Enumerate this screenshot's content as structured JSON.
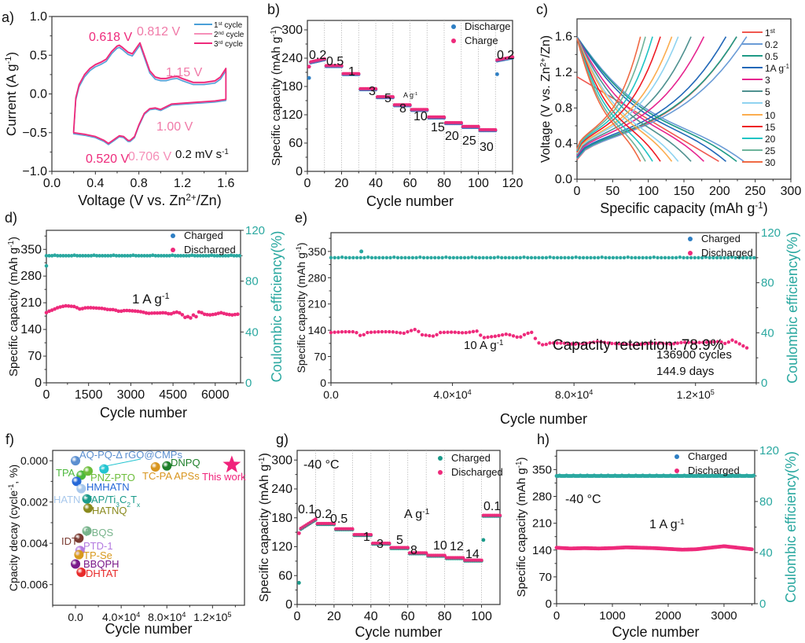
{
  "chart_data": [
    {
      "panel": "a)",
      "type": "line",
      "xlabel": "Voltage (V vs. Zn2+/Zn)",
      "ylabel": "Current (A g-1)",
      "xlim": [
        0.0,
        1.8
      ],
      "ylim": [
        -1.0,
        1.0
      ],
      "xticks": [
        "0.0",
        "0.4",
        "0.8",
        "1.2",
        "1.6"
      ],
      "yticks": [
        "-1.0",
        "-0.5",
        "0.0",
        "0.5",
        "1.0"
      ],
      "legend": [
        {
          "label": "1st cycle",
          "color": "#4a9fd8"
        },
        {
          "label": "2nd cycle",
          "color": "#f58fb8"
        },
        {
          "label": "3rd cycle",
          "color": "#ee2a7b"
        }
      ],
      "legend_position": "top-right",
      "annotations": [
        {
          "text": "0.618 V",
          "color": "#ee2a7b"
        },
        {
          "text": "0.812 V",
          "color": "#f07aa8"
        },
        {
          "text": "1.15 V",
          "color": "#f07aa8"
        },
        {
          "text": "1.00 V",
          "color": "#f07aa8"
        },
        {
          "text": "0.520 V",
          "color": "#ee2a7b"
        },
        {
          "text": "0.706 V",
          "color": "#f58fb8"
        },
        {
          "text": "0.2 mV s-1",
          "color": "#111111"
        }
      ],
      "series": [
        {
          "name": "3rd cycle anodic",
          "x": [
            0.2,
            0.22,
            0.25,
            0.3,
            0.35,
            0.4,
            0.45,
            0.5,
            0.55,
            0.6,
            0.62,
            0.65,
            0.7,
            0.74,
            0.78,
            0.81,
            0.85,
            0.9,
            0.95,
            1.0,
            1.05,
            1.1,
            1.15,
            1.2,
            1.3,
            1.4,
            1.5,
            1.55,
            1.6
          ],
          "y": [
            -0.48,
            -0.05,
            0.12,
            0.25,
            0.33,
            0.38,
            0.41,
            0.45,
            0.55,
            0.62,
            0.63,
            0.6,
            0.54,
            0.52,
            0.6,
            0.66,
            0.5,
            0.3,
            0.22,
            0.2,
            0.2,
            0.22,
            0.23,
            0.2,
            0.15,
            0.15,
            0.17,
            0.22,
            0.33
          ]
        },
        {
          "name": "3rd cycle cathodic",
          "x": [
            1.6,
            1.5,
            1.3,
            1.1,
            1.0,
            0.95,
            0.9,
            0.85,
            0.8,
            0.76,
            0.72,
            0.7,
            0.66,
            0.62,
            0.58,
            0.52,
            0.48,
            0.4,
            0.3,
            0.2
          ],
          "y": [
            -0.07,
            -0.09,
            -0.11,
            -0.13,
            -0.2,
            -0.18,
            -0.19,
            -0.25,
            -0.4,
            -0.55,
            -0.6,
            -0.6,
            -0.55,
            -0.54,
            -0.58,
            -0.64,
            -0.6,
            -0.55,
            -0.52,
            -0.5
          ]
        }
      ]
    },
    {
      "panel": "b)",
      "type": "scatter",
      "xlabel": "Cycle number",
      "ylabel": "Specific capacity (mAh g-1)",
      "xlim": [
        0,
        120
      ],
      "ylim": [
        0,
        320
      ],
      "xticks": [
        "0",
        "20",
        "40",
        "60",
        "80",
        "100",
        "120"
      ],
      "yticks": [
        "0",
        "60",
        "120",
        "180",
        "240",
        "300"
      ],
      "legend": [
        {
          "label": "Discharge",
          "color": "#2e7fc4"
        },
        {
          "label": "Charge",
          "color": "#ee2a7b"
        }
      ],
      "legend_position": "top-right",
      "unit_annotation": "A g-1",
      "rate_labels": [
        "0.2",
        "0.5",
        "1",
        "3",
        "5",
        "8",
        "10",
        "15",
        "20",
        "25",
        "30",
        "0.2"
      ],
      "segment_capacities": [
        238,
        224,
        207,
        175,
        158,
        141,
        131,
        115,
        103,
        95,
        88,
        242
      ],
      "first_cycle_discharge": 198,
      "first_cycle_charge": 222,
      "cycle_111_discharge": 206
    },
    {
      "panel": "c)",
      "type": "line",
      "xlabel": "Specific capacity (mAh g-1)",
      "ylabel": "Voltage (V vs. Zn2+/Zn)",
      "xlim": [
        0,
        300
      ],
      "ylim": [
        0.0,
        1.8
      ],
      "xticks": [
        "0",
        "50",
        "100",
        "150",
        "200",
        "250",
        "300"
      ],
      "yticks": [
        "0.0",
        "0.4",
        "0.8",
        "1.2",
        "1.6"
      ],
      "legend_position": "right",
      "series": [
        {
          "name": "1st",
          "color": "#f0584f",
          "capacity": 224,
          "discharge_capacity": 199
        },
        {
          "name": "0.2",
          "color": "#6a9bd6",
          "capacity": 238,
          "discharge_capacity": 234
        },
        {
          "name": "0.5",
          "color": "#1f9a86",
          "capacity": 224,
          "discharge_capacity": 224
        },
        {
          "name": "1A g-1",
          "color": "#2268b8",
          "capacity": 209,
          "discharge_capacity": 209
        },
        {
          "name": "3",
          "color": "#e6248f",
          "capacity": 178,
          "discharge_capacity": 178
        },
        {
          "name": "5",
          "color": "#4f9190",
          "capacity": 160,
          "discharge_capacity": 160
        },
        {
          "name": "8",
          "color": "#8fd3f0",
          "capacity": 142,
          "discharge_capacity": 142
        },
        {
          "name": "10",
          "color": "#fbad4f",
          "capacity": 133,
          "discharge_capacity": 133
        },
        {
          "name": "15",
          "color": "#ee1c25",
          "capacity": 117,
          "discharge_capacity": 117
        },
        {
          "name": "20",
          "color": "#20c4c4",
          "capacity": 106,
          "discharge_capacity": 106
        },
        {
          "name": "25",
          "color": "#6db39a",
          "capacity": 96,
          "discharge_capacity": 96
        },
        {
          "name": "30",
          "color": "#f06a44",
          "capacity": 89,
          "discharge_capacity": 89
        }
      ]
    },
    {
      "panel": "d)",
      "type": "scatter",
      "xlabel": "Cycle number",
      "ylabel": "Specific capacity (mAh g-1)",
      "y2label": "Coulombic efficiency(%)",
      "xlim": [
        0,
        6900
      ],
      "ylim": [
        0,
        400
      ],
      "y2lim": [
        0,
        120
      ],
      "xticks": [
        "0",
        "1500",
        "3000",
        "4500",
        "6000"
      ],
      "yticks": [
        "0",
        "70",
        "140",
        "210",
        "280",
        "350"
      ],
      "y2ticks": [
        "0",
        "40",
        "80",
        "120"
      ],
      "legend": [
        {
          "label": "Charged",
          "color": "#2e7fc4"
        },
        {
          "label": "Discharged",
          "color": "#ee2a7b"
        }
      ],
      "legend_position": "top-right",
      "annotation": "1 A g-1",
      "capacity_x": [
        0,
        100,
        250,
        400,
        550,
        700,
        850,
        1000,
        1200,
        1400,
        1600,
        1800,
        2000,
        2200,
        2400,
        2600,
        2800,
        3000,
        3200,
        3400,
        3600,
        3800,
        4000,
        4200,
        4400,
        4600,
        4800,
        4900,
        5000,
        5100,
        5200,
        5300,
        5400,
        5500,
        5600,
        5800,
        6000,
        6200,
        6400,
        6600,
        6800
      ],
      "capacity_y": [
        184,
        188,
        192,
        197,
        200,
        202,
        201,
        200,
        193,
        197,
        197,
        196,
        195,
        192,
        192,
        187,
        190,
        189,
        188,
        186,
        182,
        183,
        183,
        184,
        180,
        186,
        182,
        170,
        176,
        167,
        180,
        170,
        186,
        185,
        180,
        178,
        180,
        184,
        180,
        178,
        180
      ],
      "ce_value": 100,
      "ce_first": 92
    },
    {
      "panel": "e)",
      "type": "scatter",
      "xlabel": "Cycle number",
      "ylabel": "Specific capacity (mAh g-1)",
      "y2label": "Coulombic efficiency(%)",
      "xlim": [
        0,
        140000
      ],
      "ylim": [
        0,
        400
      ],
      "y2lim": [
        0,
        120
      ],
      "xticks": [
        "0.0",
        "4.0×10^4",
        "8.0×10^4",
        "1.2×10^5"
      ],
      "yticks": [
        "0",
        "70",
        "140",
        "210",
        "280",
        "350"
      ],
      "y2ticks": [
        "0",
        "40",
        "80",
        "120"
      ],
      "legend": [
        {
          "label": "Charged",
          "color": "#2e7fc4"
        },
        {
          "label": "Discharged",
          "color": "#ee2a7b"
        }
      ],
      "legend_position": "top-right",
      "annotations": [
        "10 A g-1",
        "Capacity retention: 78.9%",
        "136900 cycles",
        "144.9 days"
      ],
      "capacity_x": [
        0,
        4000,
        8000,
        10000,
        12000,
        16000,
        20000,
        24000,
        26000,
        28000,
        30000,
        34000,
        36000,
        40000,
        44000,
        48000,
        50000,
        54000,
        58000,
        62000,
        64000,
        66000,
        68000,
        70000,
        72000,
        76000,
        80000,
        84000,
        88000,
        92000,
        96000,
        100000,
        104000,
        108000,
        112000,
        116000,
        120000,
        124000,
        128000,
        130000,
        132000,
        134000,
        136900
      ],
      "capacity_y": [
        134,
        136,
        136,
        124,
        134,
        136,
        136,
        132,
        138,
        143,
        128,
        124,
        134,
        135,
        133,
        138,
        120,
        124,
        130,
        120,
        130,
        135,
        108,
        100,
        106,
        106,
        103,
        105,
        110,
        105,
        104,
        101,
        105,
        106,
        103,
        108,
        107,
        108,
        110,
        104,
        114,
        106,
        93
      ],
      "ce_value": 100,
      "ce_outlier": {
        "x": 10000,
        "y": 105
      }
    },
    {
      "panel": "f)",
      "type": "scatter",
      "xlabel": "Cycle number",
      "ylabel": "Cpacity decay (cycle-1, %)",
      "xlim": [
        -20000,
        148000
      ],
      "ylim": [
        -0.0005,
        0.007
      ],
      "y_inverted": true,
      "xticks": [
        "0.0",
        "4.0×10^4",
        "8.0×10^4",
        "1.2×10^5"
      ],
      "yticks": [
        "0.000",
        "0.002",
        "0.004",
        "0.006"
      ],
      "points": [
        {
          "label": "AQ-PQ-Δ rGO@CMPs",
          "x": 0,
          "y": 0.0,
          "color": "#5b8fd0"
        },
        {
          "label": "rGO@CMPs",
          "x": 25000,
          "y": 0.0004,
          "color": "#22c4d0"
        },
        {
          "label": "DNPQ",
          "x": 80000,
          "y": 0.00025,
          "color": "#1e7f2a"
        },
        {
          "label": "TC-PA APSs",
          "x": 70000,
          "y": 0.0003,
          "color": "#d8951e"
        },
        {
          "label": "This work",
          "x": 136900,
          "y": 0.0002,
          "color": "#f0237b",
          "marker": "star"
        },
        {
          "label": "TPA",
          "x": 5000,
          "y": 0.0007,
          "color": "#4cb83c"
        },
        {
          "label": "PNZ-PTO",
          "x": 11000,
          "y": 0.0005,
          "color": "#6cbd3a"
        },
        {
          "label": "HMHATN",
          "x": 1000,
          "y": 0.001,
          "color": "#2568d8"
        },
        {
          "label": "HATN",
          "x": 5000,
          "y": 0.00135,
          "color": "#a8c8ec"
        },
        {
          "label": "TAP/Ti3C2Tx",
          "x": 10000,
          "y": 0.00185,
          "color": "#1a9a8a"
        },
        {
          "label": "HATNQ",
          "x": 11000,
          "y": 0.0023,
          "color": "#8a8a1e"
        },
        {
          "label": "PBQS",
          "x": 10000,
          "y": 0.0034,
          "color": "#78b48c"
        },
        {
          "label": "IDT",
          "x": 3000,
          "y": 0.00375,
          "color": "#7a3a30"
        },
        {
          "label": "PTD-1",
          "x": 4000,
          "y": 0.00435,
          "color": "#b47ae0"
        },
        {
          "label": "TP-Se",
          "x": 3000,
          "y": 0.00455,
          "color": "#d89a1e"
        },
        {
          "label": "BBQPH",
          "x": 0,
          "y": 0.005,
          "color": "#7a1a8a"
        },
        {
          "label": "DHTAT",
          "x": 5000,
          "y": 0.0054,
          "color": "#e82a2a"
        }
      ]
    },
    {
      "panel": "g)",
      "type": "scatter",
      "xlabel": "Cycle number",
      "ylabel": "Specific capacity (mAh g-1)",
      "xlim": [
        0,
        110
      ],
      "ylim": [
        0,
        320
      ],
      "xticks": [
        "0",
        "20",
        "40",
        "60",
        "80",
        "100"
      ],
      "yticks": [
        "0",
        "60",
        "120",
        "180",
        "240",
        "300"
      ],
      "legend": [
        {
          "label": "Charged",
          "color": "#1a9a8a"
        },
        {
          "label": "Discharged",
          "color": "#ee2a7b"
        }
      ],
      "legend_position": "top-right",
      "annotations": [
        "-40 °C",
        "A g-1"
      ],
      "rate_labels": [
        "0.1",
        "0.2",
        "0.5",
        "1",
        "3",
        "5",
        "8",
        "10",
        "12",
        "14",
        "0.1"
      ],
      "segment_capacities": [
        178,
        168,
        157,
        145,
        127,
        118,
        107,
        102,
        97,
        92,
        185
      ],
      "first_cycle_charged": 45,
      "first_cycle_discharged": 148,
      "cycle_101_charged": 134
    },
    {
      "panel": "h)",
      "type": "scatter",
      "xlabel": "Cycle number",
      "ylabel": "Specific capacity (mAh g-1)",
      "y2label": "Coulombic efficiency(%)",
      "xlim": [
        0,
        3550
      ],
      "ylim": [
        0,
        400
      ],
      "y2lim": [
        0,
        120
      ],
      "xticks": [
        "0",
        "1000",
        "2000",
        "3000"
      ],
      "yticks": [
        "0",
        "70",
        "140",
        "210",
        "280",
        "350"
      ],
      "y2ticks": [
        "0",
        "40",
        "80",
        "120"
      ],
      "legend": [
        {
          "label": "Charged",
          "color": "#2e7fc4"
        },
        {
          "label": "Discharged",
          "color": "#ee2a7b"
        }
      ],
      "legend_position": "top-right",
      "annotations": [
        "-40 °C",
        "1 A g-1"
      ],
      "capacity_x": [
        0,
        250,
        500,
        750,
        1000,
        1250,
        1500,
        1750,
        2000,
        2250,
        2500,
        2750,
        3000,
        3250,
        3500
      ],
      "capacity_y": [
        146,
        144,
        145,
        144,
        145,
        147,
        146,
        145,
        143,
        141,
        142,
        146,
        150,
        146,
        142
      ],
      "ce_value": 100
    }
  ],
  "panel_labels": [
    "a)",
    "b)",
    "c)",
    "d)",
    "e)",
    "f)",
    "g)",
    "h)"
  ],
  "colors": {
    "axis": "#333333",
    "pink": "#ee2a7b",
    "teal": "#2aa8a0",
    "blue": "#2e7fc4",
    "grid": "#b8b8b8"
  }
}
